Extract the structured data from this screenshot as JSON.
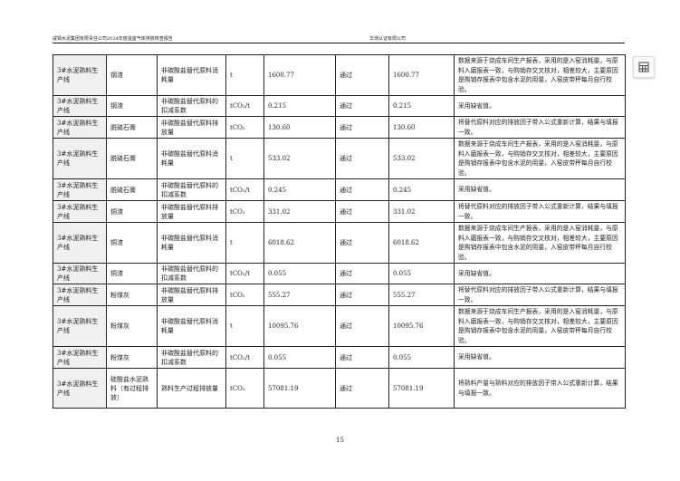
{
  "header": {
    "left": "咸铜水泥集团有限责任公司2024年度温室气体排放核查报告",
    "right": "华测认证有限公司"
  },
  "rows": [
    [
      "3#水泥熟料生产线",
      "钢渣",
      "非碳酸盐替代原料消耗量",
      "t",
      "1600.77",
      "通过",
      "1600.77",
      "数据来源于烧成车间生产报表，采用的是入窑消耗量，与原料入磨报表一致，与购销存交叉核对，相差较大，主要原因是购销存报表中包含水泥的用量，入窑皮带秤每月自行校验。"
    ],
    [
      "3#水泥熟料生产线",
      "钢渣",
      "非碳酸盐替代原料的扣减系数",
      "tCO₂/t",
      "0.215",
      "通过",
      "0.215",
      "采用缺省值。"
    ],
    [
      "3#水泥熟料生产线",
      "脱硫石膏",
      "非碳酸盐替代原料排放量",
      "tCO₂",
      "130.60",
      "通过",
      "130.60",
      "将替代原料对应的排放因子带入公式重新计算，结果与填报一致。"
    ],
    [
      "3#水泥熟料生产线",
      "脱硫石膏",
      "非碳酸盐替代原料消耗量",
      "t",
      "533.02",
      "通过",
      "533.02",
      "数据来源于烧成车间生产报表，采用的是入窑消耗量，与原料入磨报表一致，与购销存交叉核对，相差较大，主要原因是购销存报表中包含水泥的用量，入窑皮带秤每月自行校验。"
    ],
    [
      "3#水泥熟料生产线",
      "脱硫石膏",
      "非碳酸盐替代原料的扣减系数",
      "tCO₂/t",
      "0.245",
      "通过",
      "0.245",
      "采用缺省值。"
    ],
    [
      "3#水泥熟料生产线",
      "铜渣",
      "非碳酸盐替代原料排放量",
      "tCO₂",
      "331.02",
      "通过",
      "331.02",
      "将替代原料对应的排放因子带入公式重新计算，结果与填报一致。"
    ],
    [
      "3#水泥熟料生产线",
      "铜渣",
      "非碳酸盐替代原料消耗量",
      "t",
      "6018.62",
      "通过",
      "6018.62",
      "数据来源于烧成车间生产报表，采用的是入窑消耗量，与原料入磨报表一致，与购销存交叉核对，相差较大，主要原因是购销存报表中包含水泥的用量，入窑皮带秤每月自行校验。"
    ],
    [
      "3#水泥熟料生产线",
      "铜渣",
      "非碳酸盐替代原料的扣减系数",
      "tCO₂/t",
      "0.055",
      "通过",
      "0.055",
      "采用缺省值。"
    ],
    [
      "3#水泥熟料生产线",
      "粉煤灰",
      "非碳酸盐替代原料排放量",
      "tCO₂",
      "555.27",
      "通过",
      "555.27",
      "将替代原料对应的排放因子带入公式重新计算，结果与填报一致。"
    ],
    [
      "3#水泥熟料生产线",
      "粉煤灰",
      "非碳酸盐替代原料消耗量",
      "t",
      "10095.76",
      "通过",
      "10095.76",
      "数据来源于烧成车间生产报表，采用的是入窑消耗量，与原料入磨报表一致，与购销存交叉核对，相差较大，主要原因是购销存报表中包含水泥的用量，入窑皮带秤每月自行校验。"
    ],
    [
      "3#水泥熟料生产线",
      "粉煤灰",
      "非碳酸盐替代原料的扣减系数",
      "tCO₂/t",
      "0.055",
      "通过",
      "0.055",
      "采用缺省值。"
    ],
    [
      "3#水泥熟料生产线",
      "硅酸盐水泥熟料（有过程排放）",
      "熟料生产过程排放量",
      "tCO₂",
      "57081.19",
      "通过",
      "57081.19",
      "将熟料产量与熟料对应的排放因子带入公式重新计算，结果与填报一致。"
    ]
  ],
  "page_number": "15",
  "toolbar": {
    "icon": "table-icon"
  }
}
